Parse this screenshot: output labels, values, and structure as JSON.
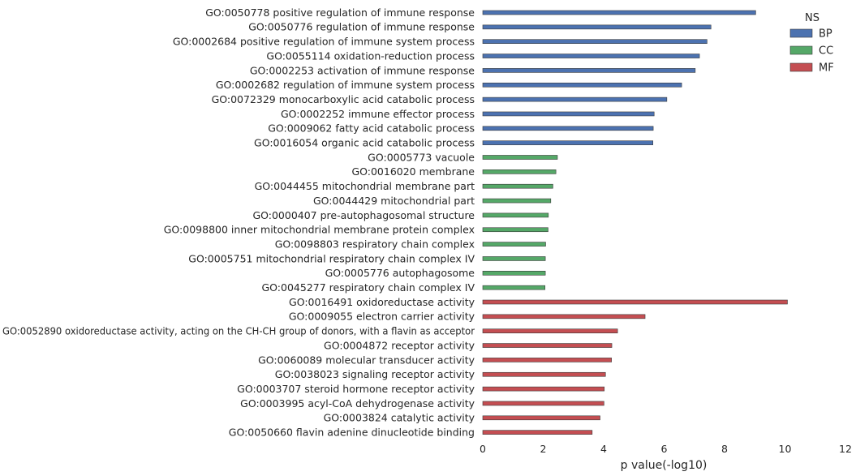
{
  "chart_data": {
    "type": "bar",
    "orientation": "horizontal",
    "title": "",
    "xlabel": "p value(-log10)",
    "ylabel": "",
    "xlim": [
      0,
      12
    ],
    "xticks": [
      "0",
      "2",
      "4",
      "6",
      "8",
      "10",
      "12"
    ],
    "grid": false,
    "legend": {
      "title": "NS",
      "position": "top-right",
      "entries": [
        {
          "name": "BP",
          "color": "#4c72b0"
        },
        {
          "name": "CC",
          "color": "#55a868"
        },
        {
          "name": "MF",
          "color": "#c44e52"
        }
      ]
    },
    "categories": [
      "GO:0050778 positive regulation of immune response",
      "GO:0050776 regulation of immune response",
      "GO:0002684 positive regulation of immune system process",
      "GO:0055114 oxidation-reduction process",
      "GO:0002253 activation of immune response",
      "GO:0002682 regulation of immune system process",
      "GO:0072329 monocarboxylic acid catabolic process",
      "GO:0002252 immune effector process",
      "GO:0009062 fatty acid catabolic process",
      "GO:0016054 organic acid catabolic process",
      "GO:0005773 vacuole",
      "GO:0016020 membrane",
      "GO:0044455 mitochondrial membrane part",
      "GO:0044429 mitochondrial part",
      "GO:0000407 pre-autophagosomal structure",
      "GO:0098800 inner mitochondrial membrane protein complex",
      "GO:0098803 respiratory chain complex",
      "GO:0005751 mitochondrial respiratory chain complex IV",
      "GO:0005776 autophagosome",
      "GO:0045277 respiratory chain complex IV",
      "GO:0016491 oxidoreductase activity",
      "GO:0009055 electron carrier activity",
      "GO:0052890 oxidoreductase activity, acting on the CH-CH group of donors, with a flavin as acceptor",
      "GO:0004872 receptor activity",
      "GO:0060089 molecular transducer activity",
      "GO:0038023 signaling receptor activity",
      "GO:0003707 steroid hormone receptor activity",
      "GO:0003995 acyl-CoA dehydrogenase activity",
      "GO:0003824 catalytic activity",
      "GO:0050660 flavin adenine dinucleotide binding"
    ],
    "groups": [
      "BP",
      "BP",
      "BP",
      "BP",
      "BP",
      "BP",
      "BP",
      "BP",
      "BP",
      "BP",
      "CC",
      "CC",
      "CC",
      "CC",
      "CC",
      "CC",
      "CC",
      "CC",
      "CC",
      "CC",
      "MF",
      "MF",
      "MF",
      "MF",
      "MF",
      "MF",
      "MF",
      "MF",
      "MF",
      "MF"
    ],
    "values": [
      9.03,
      7.55,
      7.42,
      7.17,
      7.03,
      6.58,
      6.09,
      5.67,
      5.64,
      5.63,
      2.47,
      2.42,
      2.32,
      2.25,
      2.17,
      2.16,
      2.08,
      2.07,
      2.07,
      2.06,
      10.08,
      5.37,
      4.46,
      4.27,
      4.26,
      4.06,
      4.02,
      4.01,
      3.88,
      3.62
    ],
    "colors": {
      "BP": "#4c72b0",
      "CC": "#55a868",
      "MF": "#c44e52"
    }
  }
}
